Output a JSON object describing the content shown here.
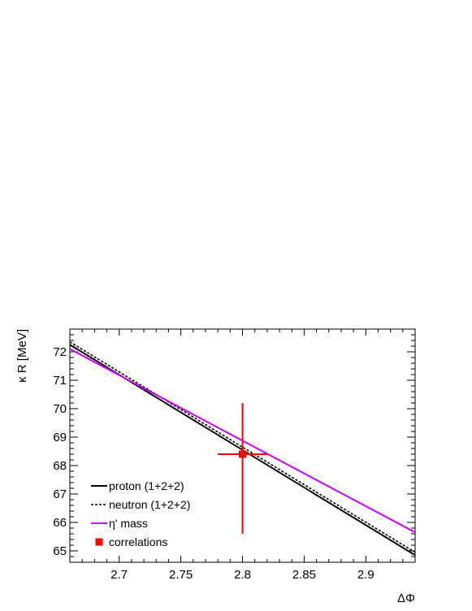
{
  "chart_data": {
    "type": "line",
    "xlabel": "ΔΦ",
    "ylabel": "κ R [MeV]",
    "xlim": [
      2.66,
      2.94
    ],
    "ylim": [
      64.6,
      72.8
    ],
    "xticks": [
      "2.7",
      "2.75",
      "2.8",
      "2.85",
      "2.9"
    ],
    "yticks": [
      "65",
      "66",
      "67",
      "68",
      "69",
      "70",
      "71",
      "72"
    ],
    "grid": false,
    "legend_position": "bottom-left",
    "series": [
      {
        "name": "proton (1+2+2)",
        "style": "solid",
        "color": "#000000",
        "x": [
          2.66,
          2.94
        ],
        "y": [
          72.25,
          64.85
        ]
      },
      {
        "name": "neutron (1+2+2)",
        "style": "dotted",
        "color": "#000000",
        "x": [
          2.66,
          2.94
        ],
        "y": [
          72.35,
          64.95
        ]
      },
      {
        "name": "η' mass",
        "style": "solid",
        "color": "#cc00ff",
        "x": [
          2.66,
          2.94
        ],
        "y": [
          72.1,
          65.65
        ]
      },
      {
        "name": "correlations",
        "style": "marker",
        "color": "#ff0000",
        "x": [
          2.8
        ],
        "y": [
          68.4
        ],
        "x_err": 0.02,
        "y_err_low": 2.8,
        "y_err_high": 1.8
      }
    ]
  }
}
